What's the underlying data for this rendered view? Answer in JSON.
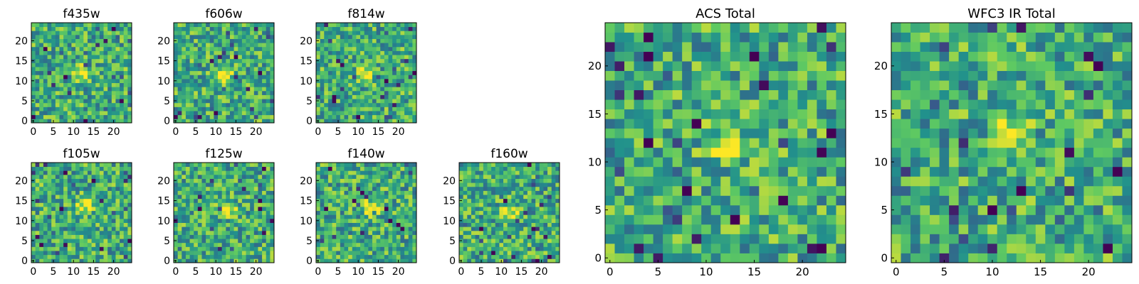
{
  "chart_data": {
    "type": "heatmap",
    "colormap": "viridis",
    "colormap_stops": [
      "#440154",
      "#3b528b",
      "#21918c",
      "#5ec962",
      "#fde725"
    ],
    "grid": false,
    "panels": [
      {
        "title": "f435w",
        "xlim": [
          0,
          25
        ],
        "ylim": [
          0,
          25
        ],
        "xticks": [
          0,
          5,
          10,
          15,
          20
        ],
        "yticks": [
          0,
          5,
          10,
          15,
          20
        ],
        "source": {
          "x": 12,
          "y": 12
        }
      },
      {
        "title": "f606w",
        "xlim": [
          0,
          25
        ],
        "ylim": [
          0,
          25
        ],
        "xticks": [
          0,
          5,
          10,
          15,
          20
        ],
        "yticks": [
          0,
          5,
          10,
          15,
          20
        ],
        "source": {
          "x": 12,
          "y": 12
        }
      },
      {
        "title": "f814w",
        "xlim": [
          0,
          25
        ],
        "ylim": [
          0,
          25
        ],
        "xticks": [
          0,
          5,
          10,
          15,
          20
        ],
        "yticks": [
          0,
          5,
          10,
          15,
          20
        ],
        "source": {
          "x": 12,
          "y": 12
        }
      },
      {
        "title": "f105w",
        "xlim": [
          0,
          25
        ],
        "ylim": [
          0,
          25
        ],
        "xticks": [
          0,
          5,
          10,
          15,
          20
        ],
        "yticks": [
          0,
          5,
          10,
          15,
          20
        ],
        "source": {
          "x": 13,
          "y": 14
        }
      },
      {
        "title": "f125w",
        "xlim": [
          0,
          25
        ],
        "ylim": [
          0,
          25
        ],
        "xticks": [
          0,
          5,
          10,
          15,
          20
        ],
        "yticks": [
          0,
          5,
          10,
          15,
          20
        ],
        "source": {
          "x": 13,
          "y": 13
        }
      },
      {
        "title": "f140w",
        "xlim": [
          0,
          25
        ],
        "ylim": [
          0,
          25
        ],
        "xticks": [
          0,
          5,
          10,
          15,
          20
        ],
        "yticks": [
          0,
          5,
          10,
          15,
          20
        ],
        "source": {
          "x": 13,
          "y": 13
        }
      },
      {
        "title": "f160w",
        "xlim": [
          0,
          25
        ],
        "ylim": [
          0,
          25
        ],
        "xticks": [
          0,
          5,
          10,
          15,
          20
        ],
        "yticks": [
          0,
          5,
          10,
          15,
          20
        ],
        "source": {
          "x": 12,
          "y": 12
        }
      },
      {
        "title": "ACS Total",
        "xlim": [
          0,
          25
        ],
        "ylim": [
          0,
          25
        ],
        "xticks": [
          0,
          5,
          10,
          15,
          20
        ],
        "yticks": [
          0,
          5,
          10,
          15,
          20
        ],
        "source": {
          "x": 12,
          "y": 12
        }
      },
      {
        "title": "WFC3 IR Total",
        "xlim": [
          0,
          25
        ],
        "ylim": [
          0,
          25
        ],
        "xticks": [
          0,
          5,
          10,
          15,
          20
        ],
        "yticks": [
          0,
          5,
          10,
          15,
          20
        ],
        "source": {
          "x": 12,
          "y": 13
        }
      }
    ]
  }
}
